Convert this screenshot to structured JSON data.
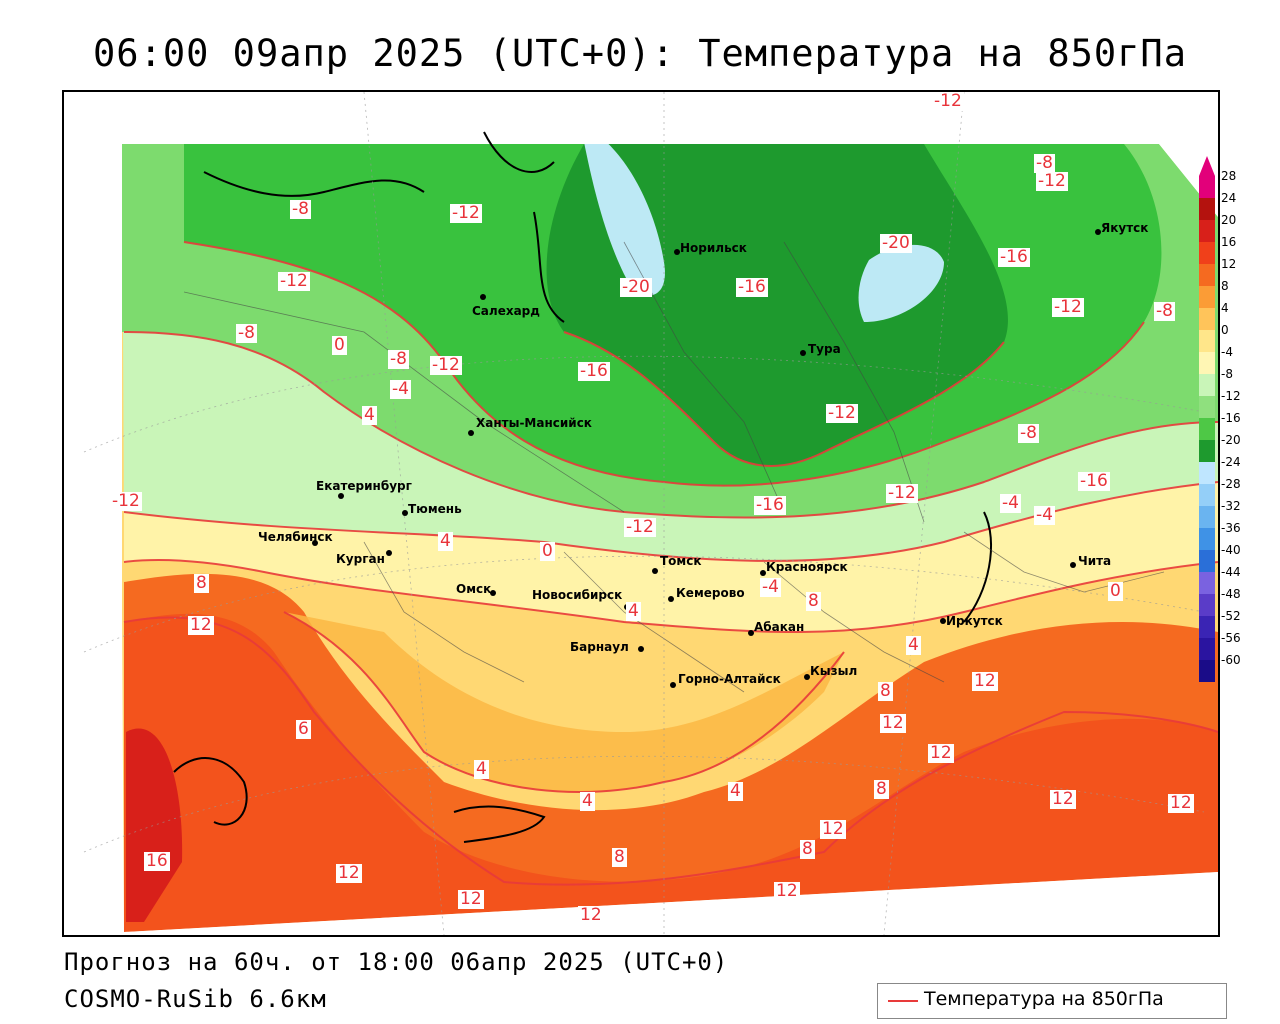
{
  "title": "06:00 09апр 2025 (UTC+0): Температура на 850гПа",
  "forecast": "Прогноз на 60ч. от 18:00 06апр 2025 (UTC+0)",
  "model": "COSMO-RuSib 6.6км",
  "legend_label": "Температура на 850гПа",
  "colors": {
    "contour": "#e83a3a",
    "green_dark": "#1e9a2e",
    "green_mid": "#39c23e",
    "green_light": "#7ddb6e",
    "green_pale": "#c9f5b8",
    "yellow_pale": "#fff3a8",
    "yellow": "#ffd873",
    "orange_light": "#fbb944",
    "orange": "#f58a2a",
    "red_orange": "#f05a1a",
    "red": "#d8261a",
    "lake": "#bde9f5"
  },
  "colorbar": [
    {
      "label": "28",
      "color": "#e2007a"
    },
    {
      "label": "24",
      "color": "#b4120e"
    },
    {
      "label": "20",
      "color": "#d8201a"
    },
    {
      "label": "16",
      "color": "#f0401a"
    },
    {
      "label": "12",
      "color": "#f56a20"
    },
    {
      "label": "8",
      "color": "#fb9c36"
    },
    {
      "label": "4",
      "color": "#ffc45a"
    },
    {
      "label": "0",
      "color": "#ffe68a"
    },
    {
      "label": "-4",
      "color": "#fff6b4"
    },
    {
      "label": "-8",
      "color": "#c9f5b8"
    },
    {
      "label": "-12",
      "color": "#8fe07e"
    },
    {
      "label": "-16",
      "color": "#4ec846"
    },
    {
      "label": "-20",
      "color": "#1e9a2e"
    },
    {
      "label": "-24",
      "color": "#bfe6ff"
    },
    {
      "label": "-28",
      "color": "#94cff8"
    },
    {
      "label": "-32",
      "color": "#6ab4f0"
    },
    {
      "label": "-36",
      "color": "#3f92e6"
    },
    {
      "label": "-40",
      "color": "#2a6fd8"
    },
    {
      "label": "-44",
      "color": "#7a62e0"
    },
    {
      "label": "-48",
      "color": "#5a3cc8"
    },
    {
      "label": "-52",
      "color": "#3a24b4"
    },
    {
      "label": "-56",
      "color": "#2a14a0"
    },
    {
      "label": "-60",
      "color": "#1a0c88"
    }
  ],
  "cities": [
    {
      "name": "Якутск"
    },
    {
      "name": "Норильск"
    },
    {
      "name": "Салехард"
    },
    {
      "name": "Тура"
    },
    {
      "name": "Ханты-Мансийск"
    },
    {
      "name": "Екатеринбург"
    },
    {
      "name": "Тюмень"
    },
    {
      "name": "Челябинск"
    },
    {
      "name": "Курган"
    },
    {
      "name": "Омск"
    },
    {
      "name": "Новосибирск"
    },
    {
      "name": "Томск"
    },
    {
      "name": "Красноярск"
    },
    {
      "name": "Кемерово"
    },
    {
      "name": "Барнаул"
    },
    {
      "name": "Абакан"
    },
    {
      "name": "Иркутск"
    },
    {
      "name": "Чита"
    },
    {
      "name": "Горно-Алтайск"
    },
    {
      "name": "Кызыл"
    }
  ],
  "contour_labels": [
    "-12",
    "-8",
    "-12",
    "-8",
    "-12",
    "-12",
    "-8",
    "-20",
    "-16",
    "-20",
    "-16",
    "-12",
    "-8",
    "0",
    "-8",
    "-12",
    "-16",
    "-4",
    "4",
    "-12",
    "-8",
    "-12",
    "-16",
    "-12",
    "-4",
    "-16",
    "-12",
    "-4",
    "0",
    "4",
    "0",
    "8",
    "12",
    "-4",
    "8",
    "4",
    "4",
    "8",
    "12",
    "12",
    "12",
    "6",
    "4",
    "4",
    "4",
    "8",
    "8",
    "12",
    "12",
    "16",
    "12",
    "12",
    "12",
    "8",
    "12",
    "12"
  ]
}
